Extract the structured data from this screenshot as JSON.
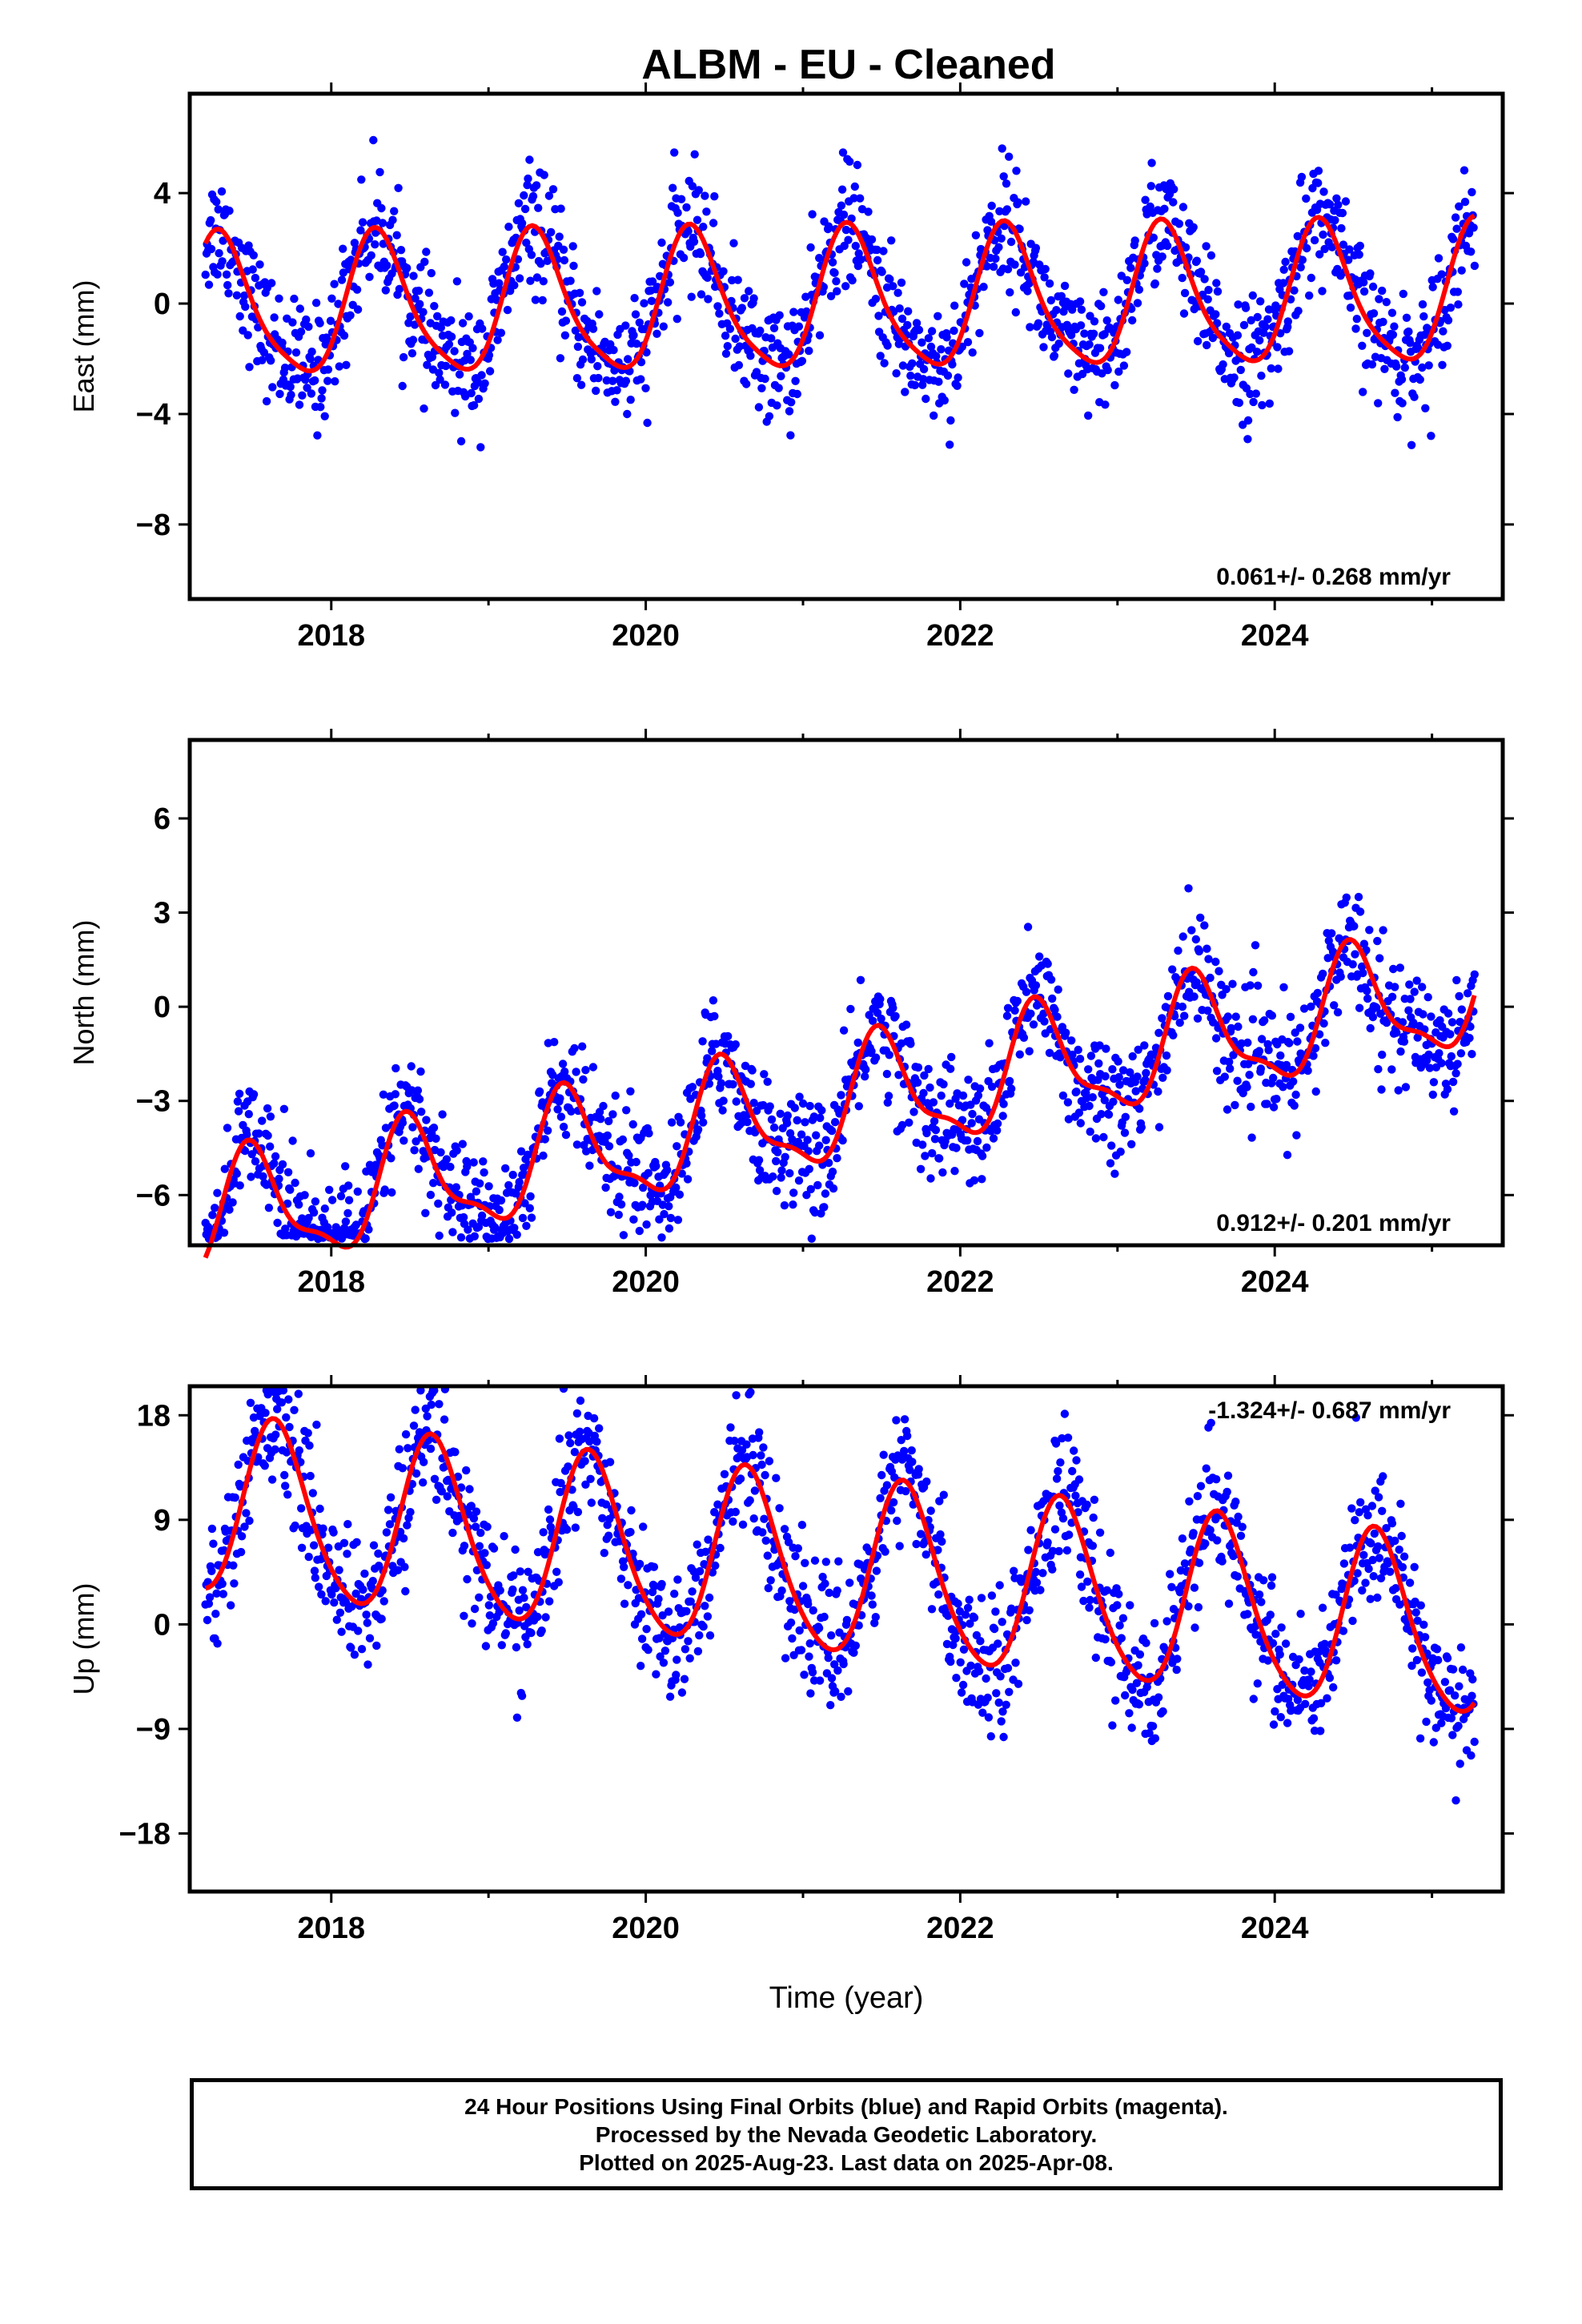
{
  "title": "ALBM  - EU - Cleaned",
  "xlabel": "Time (year)",
  "caption": [
    "24 Hour Positions Using Final Orbits (blue) and Rapid Orbits (magenta).",
    "Processed by the Nevada Geodetic Laboratory.",
    "Plotted on 2025-Aug-23. Last data on 2025-Apr-08."
  ],
  "colors": {
    "points": "#0000ff",
    "fit": "#ff0000",
    "frame": "#000000"
  },
  "chart_data": [
    {
      "type": "scatter",
      "ylabel": "East (mm)",
      "xlim": [
        2017.1,
        2025.45
      ],
      "ylim": [
        -10.7,
        7.6
      ],
      "xticks": [
        2018,
        2020,
        2022,
        2024
      ],
      "yticks": [
        4,
        0,
        -4,
        -8
      ],
      "ytick_labels": [
        "4",
        "0",
        "−4",
        "−8"
      ],
      "rate_label": "0.061+/- 0.268 mm/yr",
      "rate_position": "bottom-right",
      "model": {
        "offset": 0,
        "rate": 0.061,
        "annual": 2.5,
        "annual_peak": 2018.3,
        "semiannual": 0.5,
        "semi_peak": 2018.25
      },
      "scatter_sd": 1.1
    },
    {
      "type": "scatter",
      "ylabel": "North (mm)",
      "xlim": [
        2017.1,
        2025.45
      ],
      "ylim": [
        -7.6,
        8.5
      ],
      "xticks": [
        2018,
        2020,
        2022,
        2024
      ],
      "yticks": [
        6,
        3,
        0,
        -3,
        -6
      ],
      "ytick_labels": [
        "6",
        "3",
        "0",
        "−3",
        "−6"
      ],
      "rate_label": "0.912+/- 0.201 mm/yr",
      "rate_position": "bottom-right",
      "model": {
        "offset": -3.1,
        "rate": 0.912,
        "annual": 1.8,
        "annual_peak": 2018.5,
        "semiannual": 0.6,
        "semi_peak": 2018.45
      },
      "scatter_sd": 0.95
    },
    {
      "type": "scatter",
      "ylabel": "Up (mm)",
      "xlim": [
        2017.1,
        2025.45
      ],
      "ylim": [
        -23,
        20.5
      ],
      "xticks": [
        2018,
        2020,
        2022,
        2024
      ],
      "yticks": [
        18,
        9,
        0,
        -9,
        -18
      ],
      "ytick_labels": [
        "18",
        "9",
        "0",
        "−9",
        "−18"
      ],
      "rate_label": "-1.324+/- 0.687 mm/yr",
      "rate_position": "top-right",
      "model": {
        "offset": 4.5,
        "rate": -1.324,
        "annual": 7.5,
        "annual_peak": 2018.65,
        "semiannual": 1.0,
        "semi_peak": 2018.6
      },
      "scatter_sd": 2.8
    }
  ]
}
